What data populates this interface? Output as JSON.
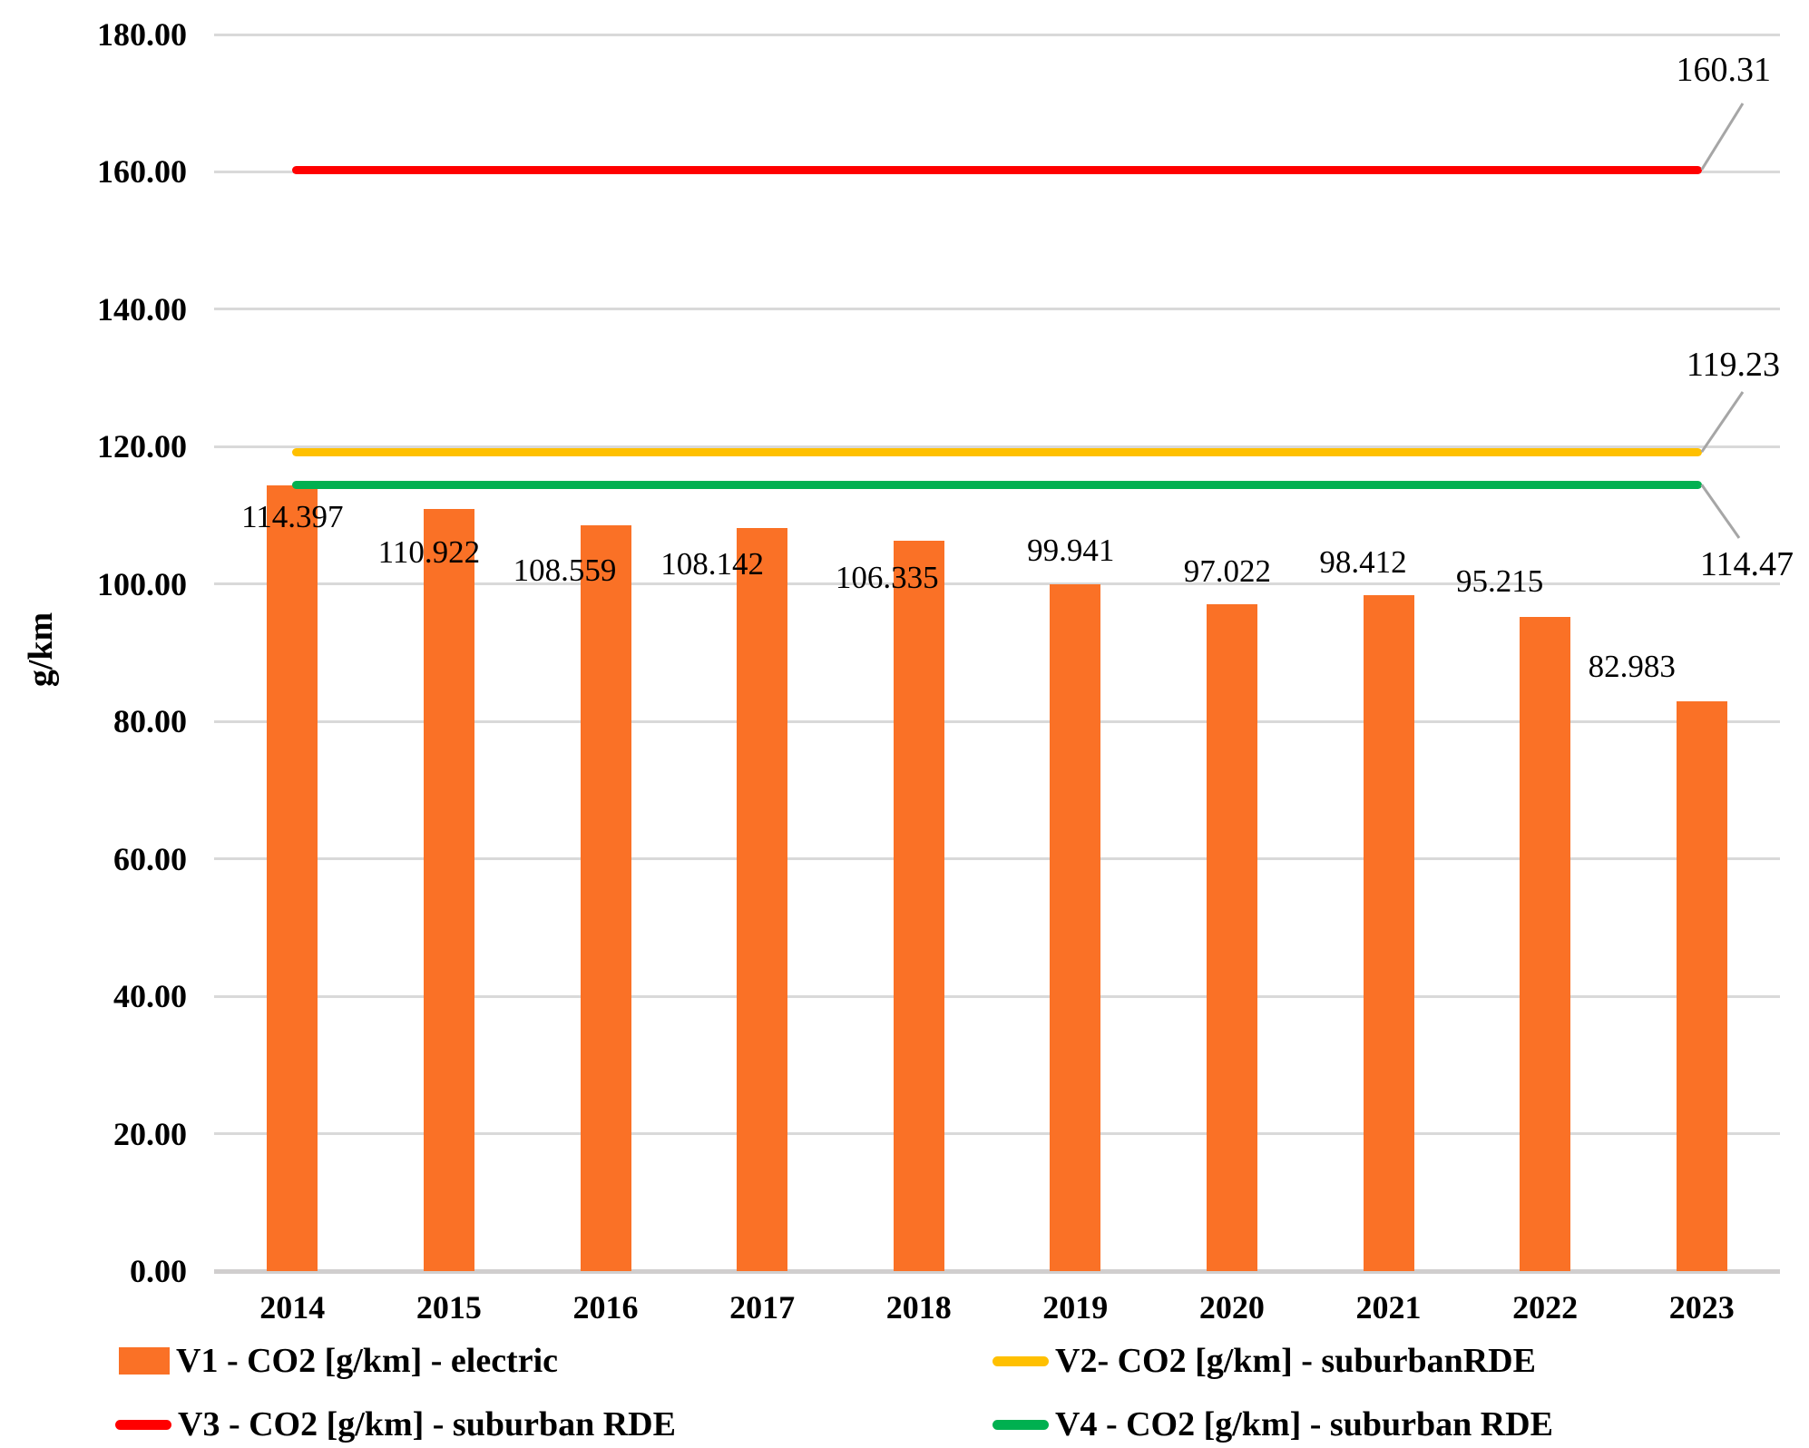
{
  "chart_data": {
    "type": "bar",
    "title": "",
    "ylabel": "g/km",
    "xlabel": "",
    "ylim": [
      0,
      180
    ],
    "ytick_labels": [
      "0.00",
      "20.00",
      "40.00",
      "60.00",
      "80.00",
      "100.00",
      "120.00",
      "140.00",
      "160.00",
      "180.00"
    ],
    "categories": [
      "2014",
      "2015",
      "2016",
      "2017",
      "2018",
      "2019",
      "2020",
      "2021",
      "2022",
      "2023"
    ],
    "grid": true,
    "legend_position": "bottom",
    "series": [
      {
        "name": "V1 - CO2 [g/km] - electric",
        "type": "bar",
        "color": "#FA7126",
        "values": [
          114.397,
          110.922,
          108.559,
          108.142,
          106.335,
          99.941,
          97.022,
          98.412,
          95.215,
          82.983
        ],
        "data_labels": [
          "114.397",
          "110.922",
          "108.559",
          "108.142",
          "106.335",
          "99.941",
          "97.022",
          "98.412",
          "95.215",
          "82.983"
        ]
      },
      {
        "name": "V2- CO2 [g/km] - suburbanRDE",
        "type": "line",
        "color": "#FFC000",
        "value": 119.23,
        "annotation": "119.23"
      },
      {
        "name": "V3 - CO2 [g/km] - suburban RDE",
        "type": "line",
        "color": "#FF0000",
        "value": 160.31,
        "annotation": "160.31"
      },
      {
        "name": "V4 - CO2 [g/km] - suburban RDE",
        "type": "line",
        "color": "#00B050",
        "value": 114.47,
        "annotation": "114.47"
      }
    ],
    "colors": {
      "gridline": "#D9D9D9",
      "axis_line": "#D0CECE",
      "leader_line": "#A6A6A6",
      "text": "#000000"
    }
  }
}
